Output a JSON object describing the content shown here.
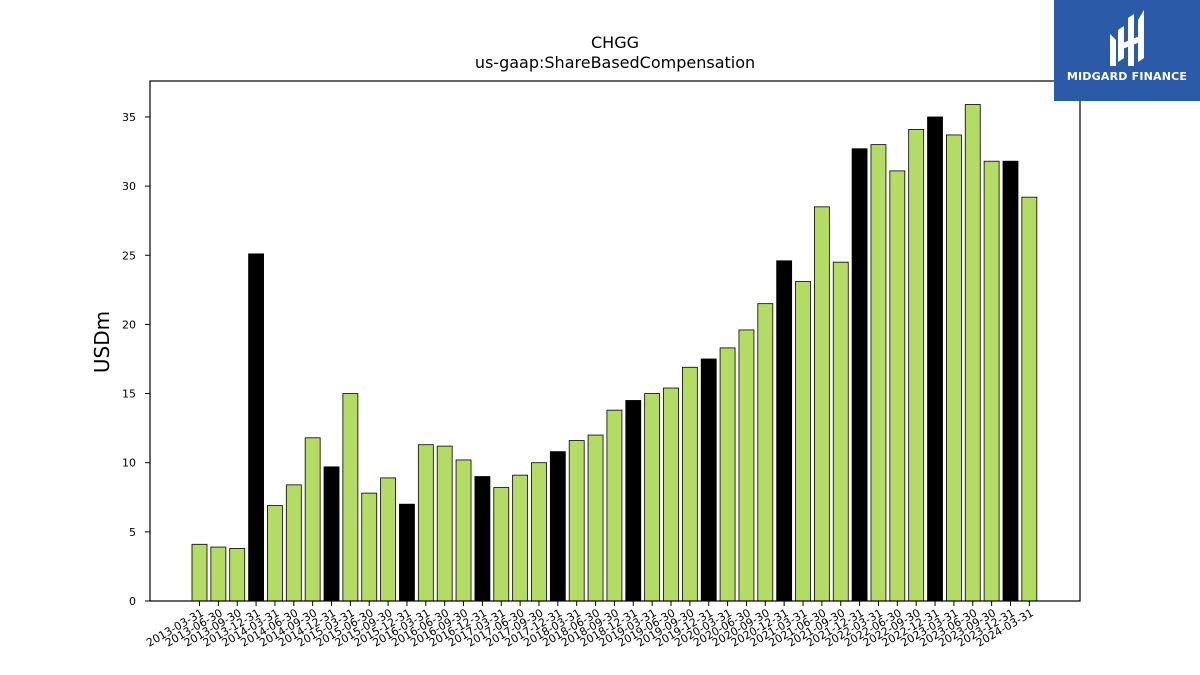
{
  "chart_data": {
    "type": "bar",
    "title": "CHGG",
    "subtitle": "us-gaap:ShareBasedCompensation",
    "xlabel": "",
    "ylabel": "USDm",
    "ylim": [
      0,
      37.6
    ],
    "yticks": [
      0,
      5,
      10,
      15,
      20,
      25,
      30,
      35
    ],
    "grid": false,
    "colors": {
      "quarter": "#b2dc64",
      "year_end": "#000000",
      "edge": "#000000"
    },
    "categories": [
      "2013-03-31",
      "2013-06-30",
      "2013-09-30",
      "2013-12-31",
      "2014-03-31",
      "2014-06-30",
      "2014-09-30",
      "2014-12-31",
      "2015-03-31",
      "2015-06-30",
      "2015-09-30",
      "2015-12-31",
      "2016-03-31",
      "2016-06-30",
      "2016-09-30",
      "2016-12-31",
      "2017-03-31",
      "2017-06-30",
      "2017-09-30",
      "2017-12-31",
      "2018-03-31",
      "2018-06-30",
      "2018-09-30",
      "2018-12-31",
      "2019-03-31",
      "2019-06-30",
      "2019-09-30",
      "2019-12-31",
      "2020-03-31",
      "2020-06-30",
      "2020-09-30",
      "2020-12-31",
      "2021-03-31",
      "2021-06-30",
      "2021-09-30",
      "2021-12-31",
      "2022-03-31",
      "2022-06-30",
      "2022-09-30",
      "2022-12-31",
      "2023-03-31",
      "2023-06-30",
      "2023-09-30",
      "2023-12-31",
      "2024-03-31"
    ],
    "values": [
      4.1,
      3.9,
      3.8,
      25.1,
      6.9,
      8.4,
      11.8,
      9.7,
      15.0,
      7.8,
      8.9,
      7.0,
      11.3,
      11.2,
      10.2,
      9.0,
      8.2,
      9.1,
      10.0,
      10.8,
      11.6,
      12.0,
      13.8,
      14.5,
      15.0,
      15.4,
      16.9,
      17.5,
      18.3,
      19.6,
      21.5,
      24.6,
      23.1,
      28.5,
      24.5,
      32.7,
      33.0,
      31.1,
      34.1,
      35.0,
      33.7,
      35.9,
      31.8,
      31.8,
      29.2
    ],
    "year_end_flags": [
      false,
      false,
      false,
      true,
      false,
      false,
      false,
      true,
      false,
      false,
      false,
      true,
      false,
      false,
      false,
      true,
      false,
      false,
      false,
      true,
      false,
      false,
      false,
      true,
      false,
      false,
      false,
      true,
      false,
      false,
      false,
      true,
      false,
      false,
      false,
      true,
      false,
      false,
      false,
      true,
      false,
      false,
      false,
      true,
      false
    ]
  },
  "logo": {
    "text": "MIDGARD FINANCE",
    "icon": "midgard-logo-icon"
  }
}
